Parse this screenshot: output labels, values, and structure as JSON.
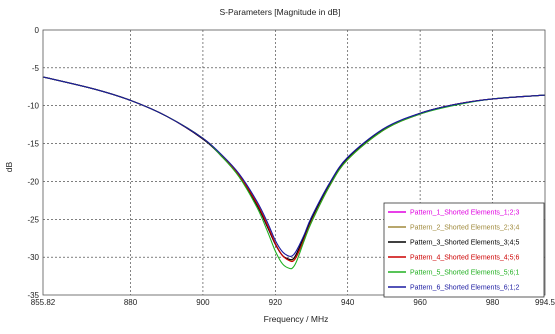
{
  "chart_data": {
    "type": "line",
    "title": "S-Parameters [Magnitude in dB]",
    "xlabel": "Frequency / MHz",
    "ylabel": "dB",
    "xlim": [
      855.82,
      994.5
    ],
    "ylim": [
      -35,
      0
    ],
    "x_ticks": [
      855.82,
      880,
      900,
      920,
      940,
      960,
      980,
      994.5
    ],
    "x_tick_labels": [
      "855.82",
      "880",
      "900",
      "920",
      "940",
      "960",
      "980",
      "994.5"
    ],
    "y_ticks": [
      0,
      -5,
      -10,
      -15,
      -20,
      -25,
      -30,
      -35
    ],
    "y_tick_labels": [
      "0",
      "-5",
      "-10",
      "-15",
      "-20",
      "-25",
      "-30",
      "-35"
    ],
    "grid": true,
    "legend_position": "bottom-right",
    "series": [
      {
        "name": "Pattern_1_Shorted Elements_1;2;3",
        "color": "#e000e0",
        "x": [
          855.82,
          870,
          880,
          890,
          900,
          905,
          910,
          915,
          918,
          920,
          922,
          924,
          925,
          926,
          928,
          930,
          935,
          940,
          950,
          960,
          970,
          980,
          994.5
        ],
        "y": [
          -6.2,
          -7.8,
          -9.3,
          -11.4,
          -14.4,
          -16.6,
          -19.3,
          -23.2,
          -26.2,
          -28.3,
          -29.8,
          -30.3,
          -30.2,
          -29.4,
          -27.2,
          -24.9,
          -20.3,
          -16.9,
          -13.1,
          -11.0,
          -9.8,
          -9.1,
          -8.6
        ]
      },
      {
        "name": "Pattern_2_Shorted Elements_2;3;4",
        "color": "#a08a3c",
        "x": [
          855.82,
          870,
          880,
          890,
          900,
          905,
          910,
          915,
          918,
          920,
          922,
          924,
          925,
          926,
          928,
          930,
          935,
          940,
          950,
          960,
          970,
          980,
          994.5
        ],
        "y": [
          -6.2,
          -7.8,
          -9.3,
          -11.4,
          -14.3,
          -16.5,
          -19.2,
          -23.0,
          -26.0,
          -28.2,
          -29.8,
          -30.4,
          -30.3,
          -29.6,
          -27.4,
          -25.1,
          -20.5,
          -17.0,
          -13.2,
          -11.0,
          -9.8,
          -9.1,
          -8.6
        ]
      },
      {
        "name": "Pattern_3_Shorted Elements_3;4;5",
        "color": "#000000",
        "x": [
          855.82,
          870,
          880,
          890,
          900,
          905,
          910,
          915,
          918,
          920,
          922,
          924,
          925,
          926,
          928,
          930,
          935,
          940,
          950,
          960,
          970,
          980,
          994.5
        ],
        "y": [
          -6.2,
          -7.8,
          -9.3,
          -11.4,
          -14.4,
          -16.6,
          -19.3,
          -23.2,
          -26.2,
          -28.3,
          -29.8,
          -30.3,
          -30.2,
          -29.4,
          -27.2,
          -24.9,
          -20.3,
          -16.9,
          -13.1,
          -11.0,
          -9.8,
          -9.1,
          -8.6
        ]
      },
      {
        "name": "Pattern_4_Shorted Elements_4;5;6",
        "color": "#cc0000",
        "x": [
          855.82,
          870,
          880,
          890,
          900,
          905,
          910,
          915,
          918,
          920,
          922,
          924,
          925,
          926,
          928,
          930,
          935,
          940,
          950,
          960,
          970,
          980,
          994.5
        ],
        "y": [
          -6.2,
          -7.8,
          -9.3,
          -11.4,
          -14.3,
          -16.5,
          -19.2,
          -23.0,
          -26.0,
          -28.2,
          -29.8,
          -30.5,
          -30.5,
          -29.8,
          -27.6,
          -25.3,
          -20.6,
          -17.1,
          -13.2,
          -11.1,
          -9.8,
          -9.1,
          -8.6
        ]
      },
      {
        "name": "Pattern_5_Shorted Elements_5;6;1",
        "color": "#20b020",
        "x": [
          855.82,
          870,
          880,
          890,
          900,
          905,
          910,
          915,
          918,
          920,
          922,
          924,
          925,
          926,
          928,
          930,
          935,
          940,
          950,
          960,
          970,
          980,
          994.5
        ],
        "y": [
          -6.2,
          -7.8,
          -9.3,
          -11.4,
          -14.3,
          -16.6,
          -19.4,
          -23.5,
          -26.8,
          -29.2,
          -30.9,
          -31.5,
          -31.3,
          -30.4,
          -27.8,
          -25.4,
          -20.6,
          -17.1,
          -13.2,
          -11.1,
          -9.9,
          -9.1,
          -8.6
        ]
      },
      {
        "name": "Pattern_6_Shorted Elements_6;1;2",
        "color": "#1a1aa0",
        "x": [
          855.82,
          870,
          880,
          890,
          900,
          905,
          910,
          915,
          918,
          920,
          922,
          924,
          925,
          926,
          928,
          930,
          935,
          940,
          950,
          960,
          970,
          980,
          994.5
        ],
        "y": [
          -6.2,
          -7.8,
          -9.3,
          -11.4,
          -14.3,
          -16.4,
          -19.0,
          -22.7,
          -25.6,
          -27.8,
          -29.3,
          -29.9,
          -29.7,
          -29.0,
          -27.0,
          -24.7,
          -20.2,
          -16.8,
          -13.0,
          -11.0,
          -9.8,
          -9.1,
          -8.6
        ]
      }
    ]
  }
}
